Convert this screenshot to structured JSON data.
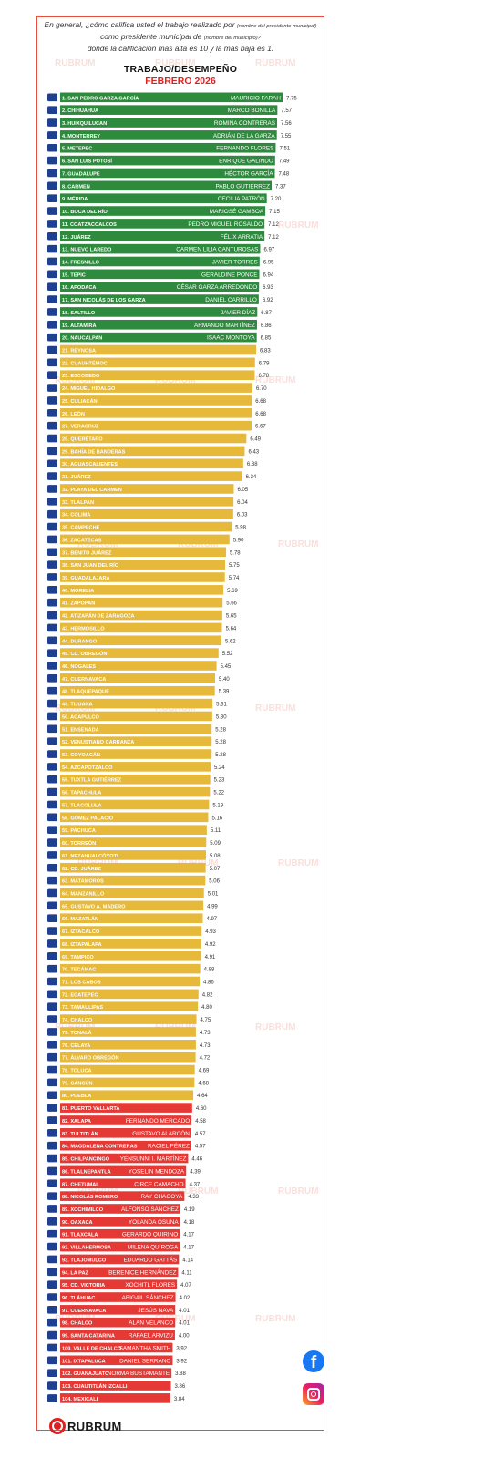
{
  "header": {
    "question_line1": "En general, ¿cómo califica usted el trabajo realizado por",
    "question_note1": "(nombre del presidente municipal)",
    "question_line2": "como presidente municipal de",
    "question_note2": "(nombre del municipio)?",
    "question_line3": "donde la calificación más alta es 10 y la más baja es 1."
  },
  "brand": {
    "name": "RUBRUM",
    "watermark": "RUBRUM"
  },
  "social": {
    "facebook": "f"
  },
  "colors": {
    "green": "#2e8b3e",
    "yellow": "#e6b93a",
    "red": "#e53935",
    "frame": "#e74c3c"
  },
  "chart_data": {
    "type": "bar",
    "title": "TRABAJO/DESEMPEÑO",
    "subtitle": "FEBRERO 2026",
    "categories": [
      "1. SAN PEDRO GARZA GARCÍA",
      "2. CHIHUAHUA",
      "3. HUIXQUILUCAN",
      "4. MONTERREY",
      "5. METEPEC",
      "6. SAN LUIS POTOSÍ",
      "7. GUADALUPE",
      "8. CARMEN",
      "9. MÉRIDA",
      "10. BOCA DEL RÍO",
      "11. COATZACOALCOS",
      "12. JUÁREZ",
      "13. NUEVO LAREDO",
      "14. FRESNILLO",
      "15. TEPIC",
      "16. APODACA",
      "17. SAN NICOLÁS DE LOS GARZA",
      "18. SALTILLO",
      "19. ALTAMIRA",
      "20. NAUCALPAN",
      "21. REYNOSA",
      "22. CUAUHTÉMOC",
      "23. ESCOBEDO",
      "24. MIGUEL HIDALGO",
      "25. CULIACÁN",
      "26. LEÓN",
      "27. VERACRUZ",
      "28. QUERÉTARO",
      "29. BAHÍA DE BANDERAS",
      "30. AGUASCALIENTES",
      "31. JUÁREZ",
      "32. PLAYA DEL CARMEN",
      "33. TLALPAN",
      "34. COLIMA",
      "35. CAMPECHE",
      "36. ZACATECAS",
      "37. BENITO JUÁREZ",
      "38. SAN JUAN DEL RÍO",
      "39. GUADALAJARA",
      "40. MORELIA",
      "41. ZAPOPAN",
      "42. ATIZAPÁN DE ZARAGOZA",
      "43. HERMOSILLO",
      "44. DURANGO",
      "45. CD. OBREGÓN",
      "46. NOGALES",
      "47. CUERNAVACA",
      "48. TLAQUEPAQUE",
      "49. TIJUANA",
      "50. ACAPULCO",
      "51. ENSENADA",
      "52. VENUSTIANO CARRANZA",
      "53. COYOACÁN",
      "54. AZCAPOTZALCO",
      "55. TUXTLA GUTIÉRREZ",
      "56. TAPACHULA",
      "57. TLACOLULA",
      "58. GÓMEZ PALACIO",
      "59. PACHUCA",
      "60. TORREÓN",
      "61. NEZAHUALCÓYOTL",
      "62. CD. JUÁREZ",
      "63. MATAMOROS",
      "64. MANZANILLO",
      "65. GUSTAVO A. MADERO",
      "66. MAZATLÁN",
      "67. IZTACALCO",
      "68. IZTAPALAPA",
      "69. TAMPICO",
      "70. TECÁMAC",
      "71. LOS CABOS",
      "72. ECATEPEC",
      "73. TAMAULIPAS",
      "74. CHALCO",
      "75. TONALÁ",
      "76. CELAYA",
      "77. ÁLVARO OBREGÓN",
      "78. TOLUCA",
      "79. CANCÚN",
      "80. PUEBLA",
      "81. PUERTO VALLARTA",
      "82. XALAPA",
      "83. TULTITLÁN",
      "84. MAGDALENA CONTRERAS",
      "85. CHILPANCINGO",
      "86. TLALNEPANTLA",
      "87. CHETUMAL",
      "88. NICOLÁS ROMERO",
      "89. XOCHIMILCO",
      "90. OAXACA",
      "91. TLAXCALA",
      "92. VILLAHERMOSA",
      "93. TLAJOMULCO",
      "94. LA PAZ",
      "95. CD. VICTORIA",
      "96. TLÁHUAC",
      "97. CUERNAVACA",
      "98. CHALCO",
      "99. SANTA CATARINA",
      "100. VALLE DE CHALCO",
      "101. IXTAPALUCA",
      "102. GUANAJUATO",
      "103. CUAUTITLÁN IZCALLI",
      "104. MEXICALI"
    ],
    "names": [
      "MAURICIO FARAH",
      "MARCO BONILLA",
      "ROMINA CONTRERAS",
      "ADRIÁN DE LA GARZA",
      "FERNANDO FLORES",
      "ENRIQUE GALINDO",
      "HÉCTOR GARCÍA",
      "PABLO GUTIÉRREZ",
      "CECILIA PATRÓN",
      "MARIOSÉ GAMBOA",
      "PEDRO MIGUEL ROSALDO",
      "FÉLIX ARRATIA",
      "CARMEN LILIA CANTUROSAS",
      "JAVIER TORRES",
      "GERALDINE PONCE",
      "CÉSAR GARZA ARREDONDO",
      "DANIEL CARRILLO",
      "JAVIER DÍAZ",
      "ARMANDO MARTÍNEZ",
      "ISAAC MONTOYA",
      "",
      "",
      "",
      "",
      "",
      "",
      "",
      "",
      "",
      "",
      "",
      "",
      "",
      "",
      "",
      "",
      "",
      "",
      "",
      "",
      "",
      "",
      "",
      "",
      "",
      "",
      "",
      "",
      "",
      "",
      "",
      "",
      "",
      "",
      "",
      "",
      "",
      "",
      "",
      "",
      "",
      "",
      "",
      "",
      "",
      "",
      "",
      "",
      "",
      "",
      "",
      "",
      "",
      "",
      "",
      "",
      "",
      "",
      "",
      "",
      "",
      "FERNANDO MERCADO",
      "GUSTAVO ALARCÓN",
      "RACIEL PÉREZ",
      "YENSUNNI I. MARTÍNEZ",
      "YOSELIN MENDOZA",
      "CIRCE CAMACHO",
      "RAY CHAGOYA",
      "ALFONSO SÁNCHEZ",
      "YOLANDA OSUNA",
      "GERARDO QUIRINO",
      "MILENA QUIROGA",
      "EDUARDO GATTÁS",
      "BERENICE HERNÁNDEZ",
      "XOCHITL FLORES",
      "ABIGAIL SÁNCHEZ",
      "JESÚS NAVA",
      "ALAN VELANCO",
      "RAFAEL ARVIZU",
      "SAMANTHA SMITH",
      "DANIEL SERRANO",
      "NORMA BUSTAMANTE"
    ],
    "values": [
      7.75,
      7.57,
      7.56,
      7.55,
      7.51,
      7.49,
      7.48,
      7.37,
      7.2,
      7.15,
      7.12,
      7.12,
      6.97,
      6.95,
      6.94,
      6.93,
      6.92,
      6.87,
      6.86,
      6.85,
      6.83,
      6.79,
      6.78,
      6.7,
      6.68,
      6.68,
      6.67,
      6.49,
      6.43,
      6.38,
      6.34,
      6.05,
      6.04,
      6.03,
      5.98,
      5.9,
      5.78,
      5.75,
      5.74,
      5.69,
      5.66,
      5.65,
      5.64,
      5.62,
      5.52,
      5.45,
      5.4,
      5.39,
      5.31,
      5.3,
      5.28,
      5.28,
      5.28,
      5.24,
      5.23,
      5.22,
      5.19,
      5.16,
      5.11,
      5.09,
      5.08,
      5.07,
      5.06,
      5.01,
      4.99,
      4.97,
      4.93,
      4.92,
      4.91,
      4.88,
      4.86,
      4.82,
      4.8,
      4.75,
      4.73,
      4.73,
      4.72,
      4.69,
      4.68,
      4.64,
      4.6,
      4.58,
      4.57,
      4.57,
      4.46,
      4.39,
      4.37,
      4.33,
      4.19,
      4.18,
      4.17,
      4.17,
      4.14,
      4.11,
      4.07,
      4.02,
      4.01,
      4.01,
      4.0,
      3.92,
      3.92,
      3.88,
      3.86,
      3.84
    ],
    "value_labels": [
      "7.75",
      "7.57",
      "7.56",
      "7.55",
      "7.51",
      "7.49",
      "7.48",
      "7.37",
      "7.20",
      "7.15",
      "7.12",
      "7.12",
      "6.97",
      "6.95",
      "6.94",
      "6.93",
      "6.92",
      "6.87",
      "6.86",
      "6.85",
      "6.83",
      "6.79",
      "6.78",
      "6.70",
      "6.68",
      "6.68",
      "6.67",
      "6.49",
      "6.43",
      "6.38",
      "6.34",
      "6.05",
      "6.04",
      "6.03",
      "5.98",
      "5.90",
      "5.78",
      "5.75",
      "5.74",
      "5.69",
      "5.66",
      "5.65",
      "5.64",
      "5.62",
      "5.52",
      "5.45",
      "5.40",
      "5.39",
      "5.31",
      "5.30",
      "5.28",
      "5.28",
      "5.28",
      "5.24",
      "5.23",
      "5.22",
      "5.19",
      "5.16",
      "5.11",
      "5.09",
      "5.08",
      "5.07",
      "5.06",
      "5.01",
      "4.99",
      "4.97",
      "4.93",
      "4.92",
      "4.91",
      "4.88",
      "4.86",
      "4.82",
      "4.80",
      "4.75",
      "4.73",
      "4.73",
      "4.72",
      "4.69",
      "4.68",
      "4.64",
      "4.60",
      "4.58",
      "4.57",
      "4.57",
      "4.46",
      "4.39",
      "4.37",
      "4.33",
      "4.19",
      "4.18",
      "4.17",
      "4.17",
      "4.14",
      "4.11",
      "4.07",
      "4.02",
      "4.01",
      "4.01",
      "4.00",
      "3.92",
      "3.92",
      "3.88",
      "3.86",
      "3.84"
    ],
    "groups": [
      {
        "range": [
          1,
          20
        ],
        "color": "#2e8b3e"
      },
      {
        "range": [
          21,
          80
        ],
        "color": "#e6b93a"
      },
      {
        "range": [
          81,
          104
        ],
        "color": "#e53935"
      }
    ],
    "xlim": [
      0,
      7.75
    ],
    "grid": false,
    "legend": "none"
  }
}
